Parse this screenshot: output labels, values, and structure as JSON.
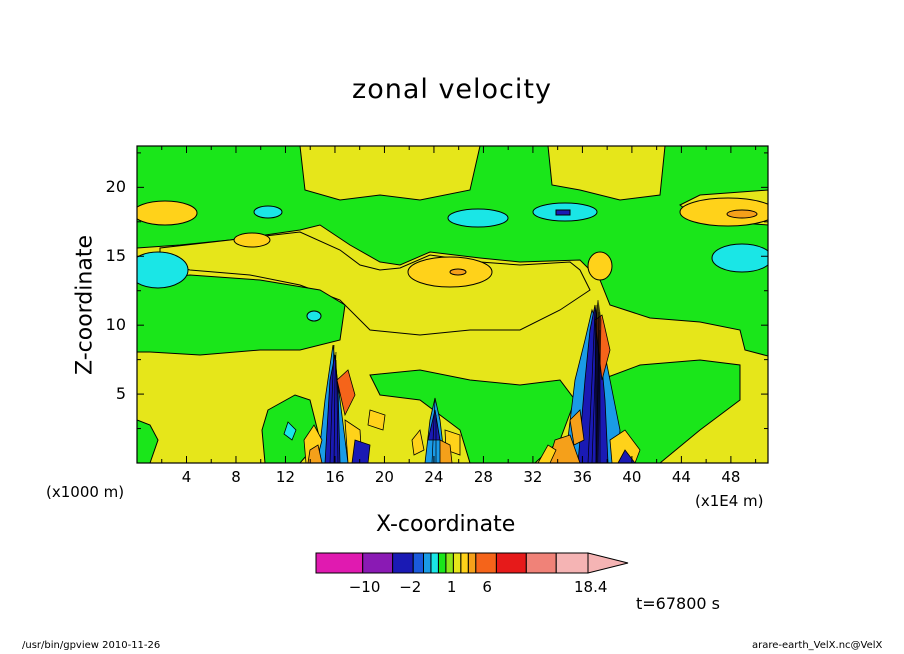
{
  "chart_data": {
    "type": "heatmap",
    "title": "zonal velocity",
    "xlabel": "X-coordinate",
    "ylabel": "Z-coordinate",
    "x_unit_left": "(x1000 m)",
    "x_unit_right": "(x1E4 m)",
    "xlim": [
      0,
      51
    ],
    "ylim": [
      0,
      23
    ],
    "x_ticks": [
      "4",
      "8",
      "12",
      "16",
      "20",
      "24",
      "28",
      "32",
      "36",
      "40",
      "44",
      "48"
    ],
    "y_ticks": [
      "5",
      "10",
      "15",
      "20"
    ],
    "colorbar": {
      "levels": [
        -14,
        -10,
        -6,
        -2,
        -1.5,
        -1,
        -0.5,
        0,
        0.5,
        1,
        1.5,
        2,
        6,
        10,
        14,
        18.4
      ],
      "colors": [
        "#e01ab0",
        "#8a1ab4",
        "#1a1ab4",
        "#1a5adc",
        "#1a9be6",
        "#1ae6e6",
        "#1ae61a",
        "#8ee61a",
        "#e6e61a",
        "#ffd21a",
        "#f5a01a",
        "#f5641a",
        "#e61a1a",
        "#f08278",
        "#f5b4b4"
      ],
      "tick_labels": [
        "-10",
        "-2",
        "1",
        "6",
        "18.4"
      ]
    },
    "background_field": "predominantly yellow (0 to 1) with green (-0.5 to 0) bands; strong alternating updraft cores near x=16, 24 and 37-38"
  },
  "annotation": {
    "time": "t=67800 s"
  },
  "footer": {
    "left": "/usr/bin/gpview   2010-11-26",
    "right": "arare-earth_VelX.nc@VelX"
  }
}
